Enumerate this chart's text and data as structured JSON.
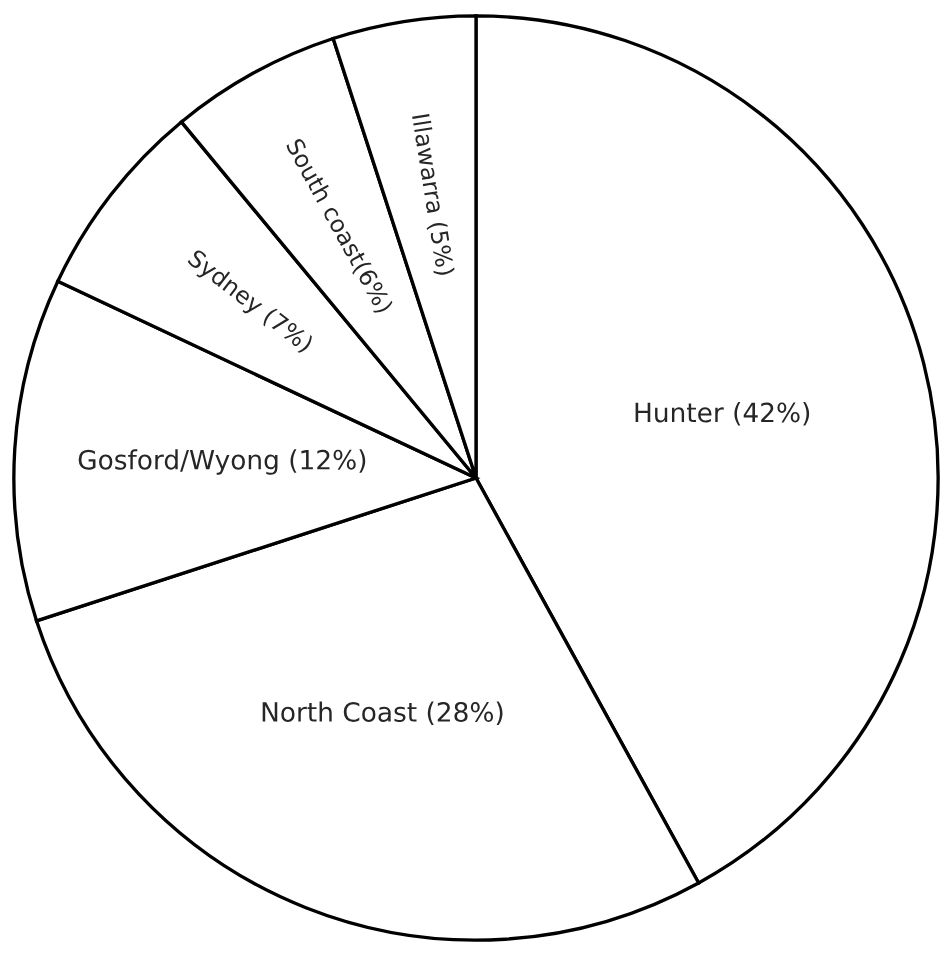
{
  "chart_data": {
    "type": "pie",
    "categories": [
      "Hunter (42%)",
      "North Coast (28%)",
      "Gosford/Wyong (12%)",
      "Sydney (7%)",
      "South coast(6%)",
      "Illawarra (5%)"
    ],
    "values": [
      42,
      28,
      12,
      7,
      6,
      5
    ],
    "colors": [
      "#ffffff",
      "#ffffff",
      "#ffffff",
      "#ffffff",
      "#ffffff",
      "#ffffff"
    ]
  }
}
